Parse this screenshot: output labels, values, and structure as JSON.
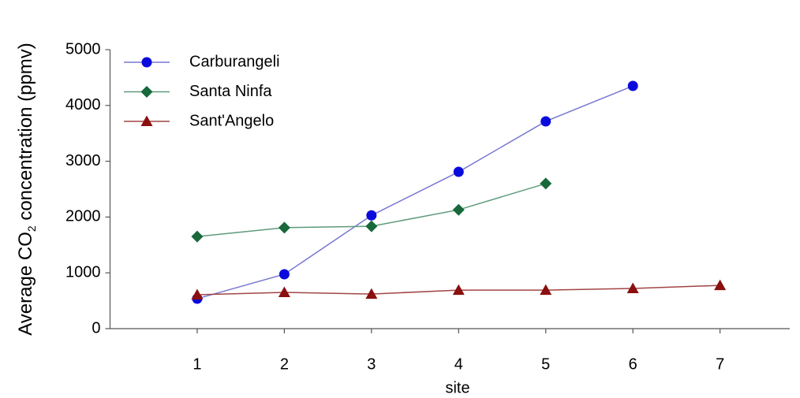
{
  "chart_data": {
    "type": "line",
    "ylabel": [
      "Average CO",
      "2",
      " concentration (ppmv)"
    ],
    "xlabel": "site",
    "x": [
      1,
      2,
      3,
      4,
      5,
      6,
      7
    ],
    "series": [
      {
        "name": "Carburangeli",
        "color": "#0a0adc",
        "line_color": "#7878d2",
        "marker": "circle",
        "values": [
          537,
          975,
          2030,
          2810,
          3715,
          4350,
          null
        ]
      },
      {
        "name": "Santa Ninfa",
        "color": "#17683a",
        "line_color": "#5e9a7c",
        "marker": "diamond",
        "values": [
          1650,
          1810,
          1835,
          2130,
          2600,
          null,
          null
        ]
      },
      {
        "name": "Sant'Angelo",
        "color": "#8a0f0f",
        "line_color": "#a24545",
        "marker": "triangle",
        "values": [
          607,
          650,
          620,
          690,
          690,
          720,
          775
        ]
      }
    ],
    "xlim": [
      0,
      7.8
    ],
    "xticks": [
      1,
      2,
      3,
      4,
      5,
      6,
      7
    ],
    "ylim": [
      0,
      5000
    ],
    "yticks": [
      0,
      1000,
      2000,
      3000,
      4000,
      5000
    ],
    "legend": "upper-left",
    "grid": false
  }
}
